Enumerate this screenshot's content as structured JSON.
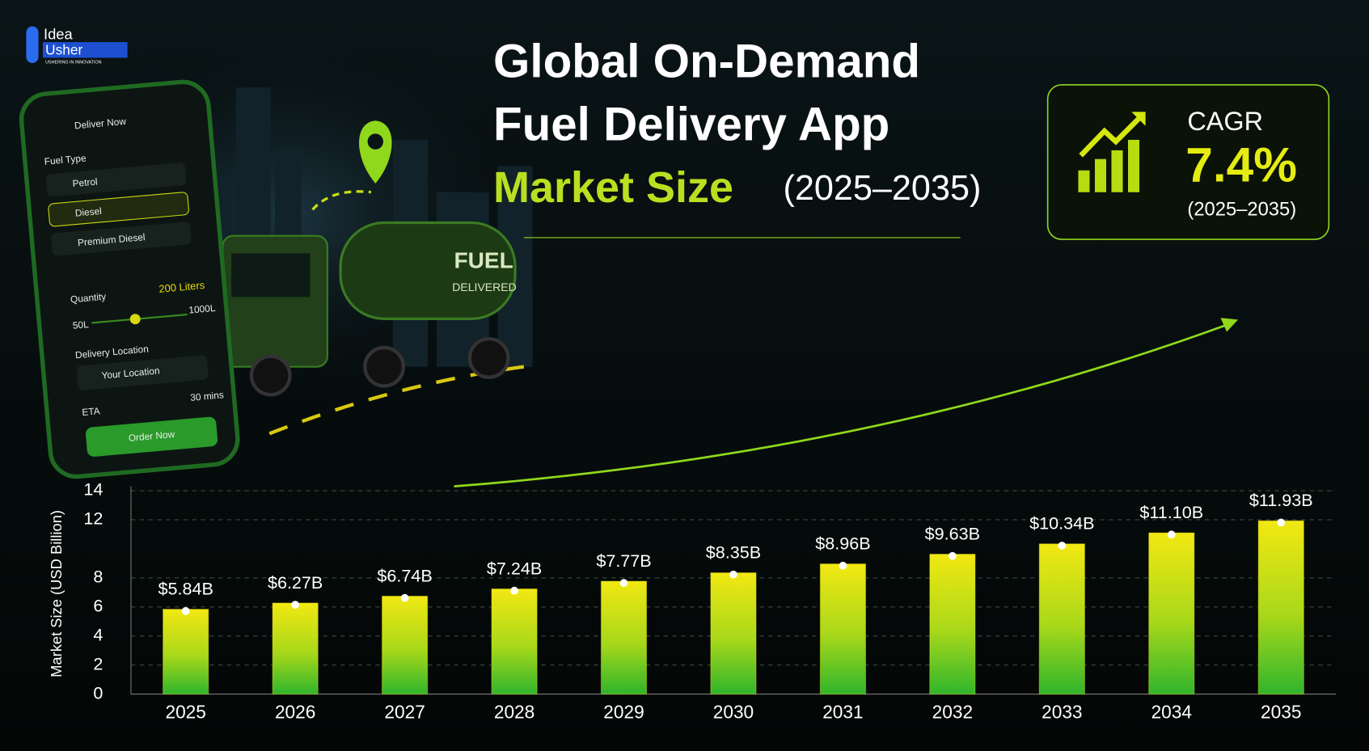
{
  "logo": {
    "brand": "Idea",
    "brand2": "Usher",
    "tagline": "USHERING IN INNOVATION"
  },
  "phone": {
    "header": "Deliver Now",
    "fuel_type_label": "Fuel Type",
    "fuel_options": [
      "Petrol",
      "Diesel",
      "Premium Diesel"
    ],
    "quantity_label": "Quantity",
    "quantity_value": "200 Liters",
    "slider_min": "50L",
    "slider_max": "1000L",
    "location_label": "Delivery Location",
    "location_value": "Your Location",
    "eta_label": "ETA",
    "eta_value": "30 mins",
    "button": "Order Now"
  },
  "truck": {
    "badge_line1": "FUEL",
    "badge_line2": "DELIVERED"
  },
  "cagr_box": {
    "label": "CAGR",
    "value_label": "7.4%",
    "period": "(2025–2035)"
  },
  "chart_data": {
    "type": "bar",
    "title": [
      "Global On-Demand",
      "Fuel Delivery App"
    ],
    "subtitle": "Market Size",
    "subtitle_period": "(2025–2035)",
    "ylabel": "Market Size (USD Billion)",
    "categories": [
      "2025",
      "2026",
      "2027",
      "2028",
      "2029",
      "2030",
      "2031",
      "2032",
      "2033",
      "2034",
      "2035"
    ],
    "values": [
      5.84,
      6.27,
      6.74,
      7.24,
      7.77,
      8.35,
      8.96,
      9.63,
      10.34,
      11.1,
      11.93
    ],
    "value_labels": [
      "$5.84B",
      "$6.27B",
      "$6.74B",
      "$7.24B",
      "$7.77B",
      "$8.35B",
      "$8.96B",
      "$9.63B",
      "$10.34B",
      "$11.10B",
      "$11.93B"
    ],
    "color": "#e8e010",
    "ylim": [
      0,
      14
    ],
    "yticks": [
      0,
      2,
      4,
      6,
      8,
      12,
      14
    ],
    "grid": true
  }
}
